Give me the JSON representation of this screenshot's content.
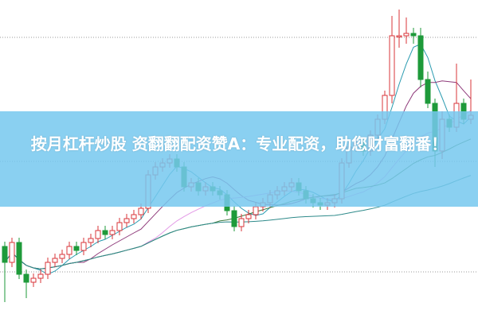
{
  "banner": {
    "text": "按月杠杆炒股 资翻翻配资赞A：专业配资，助您财富翻番！"
  },
  "colors": {
    "up": "#d9343a",
    "down": "#1e9a3a",
    "banner": "#76c8ee",
    "grid": "#999999",
    "ma": [
      "#2a9bb0",
      "#8e3a7a",
      "#e39ae6",
      "#3d7a3d",
      "#2e8a8a"
    ]
  },
  "chart_data": {
    "type": "candlestick",
    "grid": "horizontal dotted",
    "ylim": [
      0,
      400
    ],
    "open": [
      90,
      70,
      95,
      55,
      45,
      50,
      55,
      70,
      75,
      80,
      90,
      85,
      95,
      100,
      110,
      105,
      110,
      120,
      125,
      130,
      138,
      180,
      190,
      195,
      200,
      190,
      165,
      170,
      160,
      165,
      160,
      155,
      135,
      115,
      125,
      130,
      140,
      145,
      155,
      160,
      165,
      170,
      160,
      150,
      145,
      142,
      145,
      150,
      195,
      215,
      220,
      210,
      230,
      250,
      280,
      355,
      355,
      358,
      355,
      300,
      270,
      210,
      250,
      240,
      270,
      250
    ],
    "high": [
      96,
      101,
      101,
      61,
      56,
      61,
      76,
      81,
      86,
      96,
      96,
      101,
      106,
      116,
      116,
      116,
      126,
      131,
      136,
      144,
      186,
      196,
      201,
      206,
      206,
      196,
      176,
      176,
      171,
      171,
      166,
      161,
      141,
      131,
      136,
      146,
      151,
      161,
      166,
      171,
      176,
      176,
      166,
      156,
      151,
      151,
      156,
      201,
      221,
      226,
      226,
      236,
      256,
      286,
      380,
      388,
      378,
      365,
      365,
      310,
      276,
      260,
      256,
      320,
      276,
      300
    ],
    "low": [
      20,
      64,
      49,
      25,
      39,
      44,
      49,
      64,
      69,
      74,
      79,
      79,
      89,
      94,
      99,
      99,
      104,
      114,
      119,
      124,
      132,
      174,
      184,
      189,
      184,
      159,
      159,
      154,
      154,
      154,
      149,
      129,
      109,
      109,
      119,
      124,
      134,
      139,
      149,
      154,
      159,
      154,
      144,
      139,
      136,
      136,
      139,
      144,
      189,
      209,
      204,
      204,
      224,
      244,
      270,
      340,
      345,
      345,
      290,
      264,
      190,
      200,
      234,
      234,
      244,
      244
    ],
    "close": [
      70,
      95,
      55,
      45,
      50,
      55,
      70,
      75,
      80,
      90,
      85,
      95,
      100,
      110,
      105,
      110,
      120,
      125,
      130,
      138,
      180,
      190,
      195,
      200,
      190,
      165,
      170,
      160,
      165,
      160,
      155,
      135,
      115,
      125,
      130,
      140,
      145,
      155,
      160,
      165,
      170,
      160,
      150,
      145,
      142,
      145,
      150,
      195,
      215,
      220,
      210,
      230,
      250,
      280,
      355,
      355,
      358,
      355,
      300,
      270,
      210,
      250,
      240,
      270,
      250,
      255
    ],
    "moving_averages": [
      5,
      10,
      20,
      30,
      60
    ]
  }
}
